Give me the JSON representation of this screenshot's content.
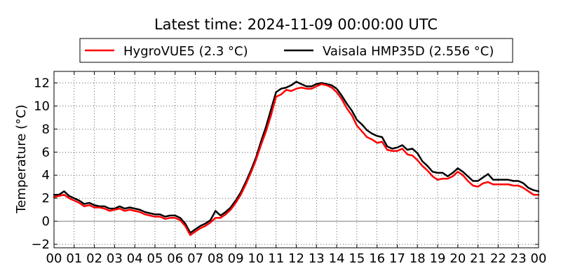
{
  "chart_data": {
    "type": "line",
    "title": "Latest time: 2024-11-09 00:00:00 UTC",
    "ylabel": "Temperature (°C)",
    "xlabel": "",
    "xlim": [
      0,
      24
    ],
    "ylim": [
      -2.3,
      13
    ],
    "grid": true,
    "legend_position": "top",
    "x_ticks": [
      "00",
      "01",
      "02",
      "03",
      "04",
      "05",
      "06",
      "07",
      "08",
      "09",
      "10",
      "11",
      "12",
      "13",
      "14",
      "15",
      "16",
      "17",
      "18",
      "19",
      "20",
      "21",
      "22",
      "23",
      "00"
    ],
    "y_ticks": [
      -2,
      0,
      2,
      4,
      6,
      8,
      10,
      12
    ],
    "series": [
      {
        "name": "HygroVUE5 (2.3 °C)",
        "color": "#ff0000",
        "x": [
          0,
          0.25,
          0.5,
          0.75,
          1,
          1.25,
          1.5,
          1.75,
          2,
          2.25,
          2.5,
          2.75,
          3,
          3.25,
          3.5,
          3.75,
          4,
          4.25,
          4.5,
          4.75,
          5,
          5.25,
          5.5,
          5.75,
          6,
          6.25,
          6.5,
          6.75,
          7,
          7.25,
          7.5,
          7.75,
          8,
          8.25,
          8.5,
          8.75,
          9,
          9.25,
          9.5,
          9.75,
          10,
          10.25,
          10.5,
          10.75,
          11,
          11.25,
          11.5,
          11.75,
          12,
          12.25,
          12.5,
          12.75,
          13,
          13.25,
          13.5,
          13.75,
          14,
          14.25,
          14.5,
          14.75,
          15,
          15.25,
          15.5,
          15.75,
          16,
          16.25,
          16.5,
          16.75,
          17,
          17.25,
          17.5,
          17.75,
          18,
          18.25,
          18.5,
          18.75,
          19,
          19.25,
          19.5,
          19.75,
          20,
          20.25,
          20.5,
          20.75,
          21,
          21.25,
          21.5,
          21.75,
          22,
          22.25,
          22.5,
          22.75,
          23,
          23.25,
          23.5,
          23.75,
          24
        ],
        "values": [
          2.1,
          2.2,
          2.3,
          2.0,
          1.8,
          1.6,
          1.3,
          1.4,
          1.2,
          1.2,
          1.1,
          0.9,
          1.0,
          1.1,
          0.9,
          1.0,
          0.9,
          0.8,
          0.6,
          0.5,
          0.4,
          0.4,
          0.2,
          0.3,
          0.3,
          0.1,
          -0.4,
          -1.2,
          -0.9,
          -0.6,
          -0.4,
          -0.1,
          0.3,
          0.3,
          0.6,
          1.0,
          1.6,
          2.3,
          3.2,
          4.2,
          5.3,
          6.6,
          7.8,
          9.2,
          10.8,
          11.0,
          11.4,
          11.3,
          11.5,
          11.6,
          11.5,
          11.5,
          11.7,
          11.9,
          11.8,
          11.6,
          11.2,
          10.6,
          9.8,
          9.2,
          8.3,
          7.8,
          7.3,
          7.1,
          6.8,
          6.9,
          6.2,
          6.1,
          6.1,
          6.3,
          5.8,
          5.7,
          5.3,
          4.8,
          4.4,
          3.9,
          3.6,
          3.7,
          3.7,
          3.9,
          4.3,
          4.0,
          3.5,
          3.1,
          3.0,
          3.3,
          3.4,
          3.2,
          3.2,
          3.2,
          3.2,
          3.1,
          3.1,
          2.9,
          2.6,
          2.3,
          2.3
        ]
      },
      {
        "name": "Vaisala HMP35D (2.556 °C)",
        "color": "#000000",
        "x": [
          0,
          0.25,
          0.5,
          0.75,
          1,
          1.25,
          1.5,
          1.75,
          2,
          2.25,
          2.5,
          2.75,
          3,
          3.25,
          3.5,
          3.75,
          4,
          4.25,
          4.5,
          4.75,
          5,
          5.25,
          5.5,
          5.75,
          6,
          6.25,
          6.5,
          6.75,
          7,
          7.25,
          7.5,
          7.75,
          8,
          8.25,
          8.5,
          8.75,
          9,
          9.25,
          9.5,
          9.75,
          10,
          10.25,
          10.5,
          10.75,
          11,
          11.25,
          11.5,
          11.75,
          12,
          12.25,
          12.5,
          12.75,
          13,
          13.25,
          13.5,
          13.75,
          14,
          14.25,
          14.5,
          14.75,
          15,
          15.25,
          15.5,
          15.75,
          16,
          16.25,
          16.5,
          16.75,
          17,
          17.25,
          17.5,
          17.75,
          18,
          18.25,
          18.5,
          18.75,
          19,
          19.25,
          19.5,
          19.75,
          20,
          20.25,
          20.5,
          20.75,
          21,
          21.25,
          21.5,
          21.75,
          22,
          22.25,
          22.5,
          22.75,
          23,
          23.25,
          23.5,
          23.75,
          24
        ],
        "values": [
          2.3,
          2.3,
          2.6,
          2.2,
          2.0,
          1.8,
          1.5,
          1.6,
          1.4,
          1.3,
          1.3,
          1.1,
          1.1,
          1.3,
          1.1,
          1.2,
          1.1,
          1.0,
          0.8,
          0.7,
          0.6,
          0.6,
          0.4,
          0.5,
          0.5,
          0.3,
          -0.2,
          -1.0,
          -0.7,
          -0.4,
          -0.2,
          0.1,
          0.9,
          0.5,
          0.8,
          1.2,
          1.8,
          2.5,
          3.4,
          4.4,
          5.5,
          6.9,
          8.2,
          9.7,
          11.2,
          11.5,
          11.6,
          11.8,
          12.1,
          11.9,
          11.7,
          11.7,
          11.9,
          12.0,
          11.9,
          11.8,
          11.5,
          10.9,
          10.2,
          9.6,
          8.8,
          8.4,
          7.9,
          7.6,
          7.4,
          7.3,
          6.5,
          6.3,
          6.4,
          6.6,
          6.2,
          6.3,
          5.9,
          5.2,
          4.8,
          4.3,
          4.2,
          4.2,
          3.9,
          4.2,
          4.6,
          4.3,
          3.9,
          3.5,
          3.5,
          3.8,
          4.1,
          3.6,
          3.6,
          3.6,
          3.6,
          3.5,
          3.5,
          3.3,
          2.9,
          2.7,
          2.6
        ]
      }
    ]
  }
}
